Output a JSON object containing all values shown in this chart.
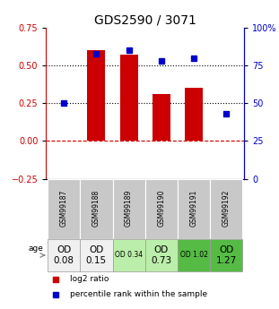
{
  "title": "GDS2590 / 3071",
  "samples": [
    "GSM99187",
    "GSM99188",
    "GSM99189",
    "GSM99190",
    "GSM99191",
    "GSM99192"
  ],
  "log2_ratio": [
    0.0,
    0.6,
    0.57,
    0.31,
    0.35,
    0.0
  ],
  "percentile_rank": [
    50,
    83,
    85,
    78,
    80,
    43
  ],
  "bar_color": "#cc0000",
  "dot_color": "#0000cc",
  "ylim_left": [
    -0.25,
    0.75
  ],
  "ylim_right": [
    0,
    100
  ],
  "yticks_left": [
    -0.25,
    0,
    0.25,
    0.5,
    0.75
  ],
  "yticks_right": [
    0,
    25,
    50,
    75,
    100
  ],
  "hlines_y": [
    0.0,
    0.25,
    0.5
  ],
  "hline_styles": [
    "--",
    ":",
    ":"
  ],
  "hline_colors": [
    "#cc0000",
    "black",
    "black"
  ],
  "row1_labels": [
    "OD\n0.08",
    "OD\n0.15",
    "OD 0.34",
    "OD\n0.73",
    "OD 1.02",
    "OD\n1.27"
  ],
  "row1_bg": [
    "#f0f0f0",
    "#f0f0f0",
    "#bbeeaa",
    "#bbeeaa",
    "#55bb44",
    "#55bb44"
  ],
  "row1_big": [
    true,
    true,
    false,
    true,
    false,
    true
  ],
  "sample_bg": "#c8c8c8",
  "row_label": "age",
  "legend_items": [
    "log2 ratio",
    "percentile rank within the sample"
  ],
  "legend_colors": [
    "#cc0000",
    "#0000cc"
  ],
  "bg_color": "#ffffff",
  "plot_bg": "#ffffff",
  "label_color_left": "#cc0000",
  "label_color_right": "#0000cc",
  "title_fontsize": 10,
  "tick_fontsize": 7,
  "sample_fontsize": 5.5,
  "legend_fontsize": 6.5
}
